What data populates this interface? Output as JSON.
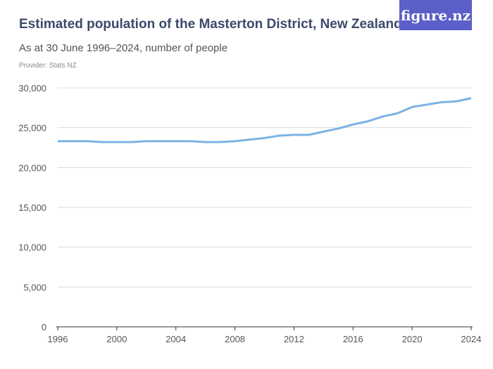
{
  "header": {
    "title": "Estimated population of the Masterton District, New Zealand",
    "subtitle": "As at 30 June 1996–2024, number of people",
    "provider": "Provider: Stats NZ",
    "logo": "figure.nz"
  },
  "colors": {
    "line": "#7ab3e5",
    "logo_bg": "#5b5fc7"
  },
  "chart_data": {
    "type": "line",
    "title": "Estimated population of the Masterton District, New Zealand",
    "xlabel": "",
    "ylabel": "",
    "ylim": [
      0,
      30000
    ],
    "xlim": [
      1996,
      2024
    ],
    "yticks": [
      0,
      5000,
      10000,
      15000,
      20000,
      25000,
      30000
    ],
    "ytick_labels": [
      "0",
      "5,000",
      "10,000",
      "15,000",
      "20,000",
      "25,000",
      "30,000"
    ],
    "xticks": [
      1996,
      2000,
      2004,
      2008,
      2012,
      2016,
      2020,
      2024
    ],
    "grid": true,
    "series": [
      {
        "name": "Masterton District",
        "x": [
          1996,
          1997,
          1998,
          1999,
          2000,
          2001,
          2002,
          2003,
          2004,
          2005,
          2006,
          2007,
          2008,
          2009,
          2010,
          2011,
          2012,
          2013,
          2014,
          2015,
          2016,
          2017,
          2018,
          2019,
          2020,
          2021,
          2022,
          2023,
          2024
        ],
        "values": [
          23300,
          23300,
          23300,
          23200,
          23200,
          23200,
          23300,
          23300,
          23300,
          23300,
          23200,
          23200,
          23300,
          23500,
          23700,
          24000,
          24100,
          24100,
          24500,
          24900,
          25400,
          25800,
          26400,
          26800,
          27600,
          27900,
          28200,
          28300,
          28700
        ]
      }
    ]
  }
}
